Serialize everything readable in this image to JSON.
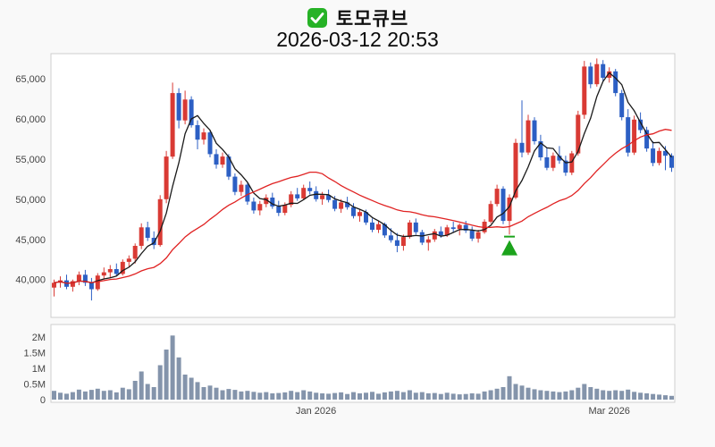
{
  "header": {
    "check_icon": "checked-box",
    "title": "토모큐브",
    "datetime": "2026-03-12 20:53"
  },
  "colors": {
    "background": "#f9f9f9",
    "plot_bg": "#ffffff",
    "plot_border": "#cfcfcf",
    "up": "#d93a34",
    "down": "#2c5fc4",
    "ma_fast": "#1a1a1a",
    "ma_slow": "#e02222",
    "volume_bar": "#8494ab",
    "signal": "#1ca31c",
    "check_green": "#26b226",
    "axis_text": "#444444"
  },
  "chart_data": {
    "type": "candlestick",
    "title": "토모큐브",
    "subtitle": "2026-03-12 20:53",
    "panels": [
      "price",
      "volume"
    ],
    "candle_format": [
      "open",
      "high",
      "low",
      "close",
      "volume"
    ],
    "price_axis": {
      "min": 35300,
      "max": 68100,
      "ticks": [
        {
          "v": 40000,
          "label": "40,000"
        },
        {
          "v": 45000,
          "label": "45,000"
        },
        {
          "v": 50000,
          "label": "50,000"
        },
        {
          "v": 55000,
          "label": "55,000"
        },
        {
          "v": 60000,
          "label": "60,000"
        },
        {
          "v": 65000,
          "label": "65,000"
        }
      ]
    },
    "volume_axis": {
      "max": 2100000,
      "ticks": [
        {
          "v": 0,
          "label": "0"
        },
        {
          "v": 500000,
          "label": "0.5M"
        },
        {
          "v": 1000000,
          "label": "1M"
        },
        {
          "v": 1500000,
          "label": "1.5M"
        },
        {
          "v": 2000000,
          "label": "2M"
        }
      ]
    },
    "x_ticks": [
      {
        "index": 42,
        "label": "Jan 2026"
      },
      {
        "index": 89,
        "label": "Mar 2026"
      }
    ],
    "moving_averages": [
      {
        "name": "fast",
        "window": 5,
        "color_key": "ma_fast"
      },
      {
        "name": "slow",
        "window": 25,
        "color_key": "ma_slow"
      }
    ],
    "buy_signal": {
      "index": 73,
      "price": 44900
    },
    "candles": [
      [
        39000,
        40000,
        37900,
        39600,
        280000
      ],
      [
        39600,
        40400,
        39000,
        39900,
        220000
      ],
      [
        39900,
        40600,
        38800,
        39100,
        190000
      ],
      [
        39100,
        40000,
        38500,
        39800,
        240000
      ],
      [
        39800,
        41000,
        39300,
        40600,
        320000
      ],
      [
        40600,
        41200,
        39200,
        39600,
        260000
      ],
      [
        39600,
        40200,
        37400,
        38800,
        310000
      ],
      [
        38800,
        40800,
        38600,
        40500,
        350000
      ],
      [
        40500,
        41500,
        40000,
        40900,
        280000
      ],
      [
        40900,
        41800,
        40200,
        41300,
        300000
      ],
      [
        41300,
        42000,
        40400,
        40700,
        230000
      ],
      [
        40700,
        42500,
        40500,
        42200,
        380000
      ],
      [
        42200,
        43000,
        41500,
        42600,
        330000
      ],
      [
        42600,
        44500,
        42000,
        44200,
        600000
      ],
      [
        44200,
        47000,
        43800,
        46500,
        900000
      ],
      [
        46500,
        47200,
        44800,
        45200,
        500000
      ],
      [
        45200,
        46000,
        43800,
        44300,
        400000
      ],
      [
        44300,
        50500,
        44100,
        50000,
        1100000
      ],
      [
        50000,
        56000,
        49500,
        55300,
        1600000
      ],
      [
        55300,
        64500,
        55000,
        63200,
        2050000
      ],
      [
        63200,
        63800,
        58800,
        59800,
        1350000
      ],
      [
        59800,
        63500,
        59300,
        62400,
        800000
      ],
      [
        62400,
        62800,
        58900,
        59200,
        700000
      ],
      [
        59200,
        59800,
        56200,
        57400,
        560000
      ],
      [
        57400,
        58800,
        56800,
        58300,
        400000
      ],
      [
        58300,
        58600,
        55200,
        55600,
        450000
      ],
      [
        55600,
        56200,
        53800,
        54300,
        380000
      ],
      [
        54300,
        55800,
        53900,
        55300,
        300000
      ],
      [
        55300,
        55600,
        52400,
        52800,
        340000
      ],
      [
        52800,
        53200,
        50500,
        50900,
        310000
      ],
      [
        50900,
        52300,
        50400,
        51800,
        260000
      ],
      [
        51800,
        52000,
        49300,
        49700,
        280000
      ],
      [
        49700,
        50200,
        48200,
        48600,
        250000
      ],
      [
        48600,
        49800,
        48000,
        49400,
        220000
      ],
      [
        49400,
        50600,
        49000,
        50200,
        240000
      ],
      [
        50200,
        50800,
        48800,
        49100,
        200000
      ],
      [
        49100,
        49800,
        47900,
        48300,
        210000
      ],
      [
        48300,
        49600,
        48000,
        49300,
        230000
      ],
      [
        49300,
        51000,
        49000,
        50600,
        280000
      ],
      [
        50600,
        51400,
        49800,
        50100,
        240000
      ],
      [
        50100,
        51800,
        49900,
        51400,
        300000
      ],
      [
        51400,
        52200,
        50600,
        51000,
        260000
      ],
      [
        51000,
        51600,
        49700,
        50000,
        220000
      ],
      [
        50000,
        50900,
        49300,
        50500,
        200000
      ],
      [
        50500,
        51200,
        49600,
        49900,
        190000
      ],
      [
        49900,
        50400,
        48500,
        48800,
        210000
      ],
      [
        48800,
        50000,
        48300,
        49600,
        230000
      ],
      [
        49600,
        50300,
        48700,
        49000,
        180000
      ],
      [
        49000,
        49500,
        47600,
        47900,
        240000
      ],
      [
        47900,
        48800,
        47200,
        48400,
        200000
      ],
      [
        48400,
        48700,
        46800,
        47100,
        220000
      ],
      [
        47100,
        47600,
        45900,
        46200,
        250000
      ],
      [
        46200,
        47300,
        45800,
        46900,
        190000
      ],
      [
        46900,
        47100,
        45200,
        45500,
        230000
      ],
      [
        45500,
        46400,
        44600,
        44900,
        260000
      ],
      [
        44900,
        45800,
        43400,
        44200,
        280000
      ],
      [
        44200,
        45600,
        43600,
        45300,
        240000
      ],
      [
        45300,
        47400,
        45100,
        47100,
        300000
      ],
      [
        47100,
        47600,
        45600,
        45900,
        220000
      ],
      [
        45900,
        46200,
        44300,
        44600,
        240000
      ],
      [
        44600,
        45400,
        43600,
        45000,
        200000
      ],
      [
        45000,
        46300,
        44700,
        46000,
        210000
      ],
      [
        46000,
        46600,
        45200,
        45500,
        180000
      ],
      [
        45500,
        46800,
        45300,
        46500,
        220000
      ],
      [
        46500,
        47200,
        45900,
        46300,
        190000
      ],
      [
        46300,
        47000,
        45500,
        46800,
        170000
      ],
      [
        46800,
        47300,
        45800,
        46100,
        180000
      ],
      [
        46100,
        46600,
        44800,
        45100,
        200000
      ],
      [
        45100,
        46200,
        44600,
        45900,
        190000
      ],
      [
        45900,
        47500,
        45700,
        47200,
        260000
      ],
      [
        47200,
        49800,
        47000,
        49400,
        300000
      ],
      [
        49400,
        51800,
        49100,
        51300,
        350000
      ],
      [
        51300,
        51600,
        46900,
        47300,
        400000
      ],
      [
        47300,
        50600,
        45600,
        50200,
        750000
      ],
      [
        50200,
        57500,
        50000,
        57000,
        500000
      ],
      [
        57000,
        62300,
        55200,
        55800,
        450000
      ],
      [
        55800,
        60500,
        55500,
        59800,
        380000
      ],
      [
        59800,
        60200,
        56800,
        57200,
        330000
      ],
      [
        57200,
        58000,
        54800,
        55200,
        300000
      ],
      [
        55200,
        56400,
        53600,
        53900,
        280000
      ],
      [
        53900,
        55800,
        53500,
        55400,
        260000
      ],
      [
        55400,
        56600,
        54400,
        54800,
        240000
      ],
      [
        54800,
        55400,
        52900,
        53300,
        260000
      ],
      [
        53300,
        56000,
        53000,
        55700,
        300000
      ],
      [
        55700,
        61000,
        55400,
        60500,
        380000
      ],
      [
        60500,
        67200,
        60000,
        66500,
        500000
      ],
      [
        66500,
        67000,
        63800,
        64300,
        400000
      ],
      [
        64300,
        67500,
        64000,
        66800,
        350000
      ],
      [
        66800,
        67300,
        64700,
        65100,
        300000
      ],
      [
        65100,
        66400,
        64500,
        65900,
        280000
      ],
      [
        65900,
        66200,
        62800,
        63200,
        300000
      ],
      [
        63200,
        63600,
        59800,
        60200,
        280000
      ],
      [
        60200,
        61200,
        55300,
        55800,
        320000
      ],
      [
        55800,
        60400,
        55500,
        59900,
        250000
      ],
      [
        59900,
        60800,
        58200,
        58600,
        220000
      ],
      [
        58600,
        59000,
        55900,
        56300,
        200000
      ],
      [
        56300,
        57200,
        54100,
        54500,
        180000
      ],
      [
        54500,
        56400,
        54200,
        56000,
        160000
      ],
      [
        56000,
        56600,
        53600,
        55400,
        140000
      ],
      [
        55400,
        55700,
        53400,
        53900,
        120000
      ]
    ]
  }
}
